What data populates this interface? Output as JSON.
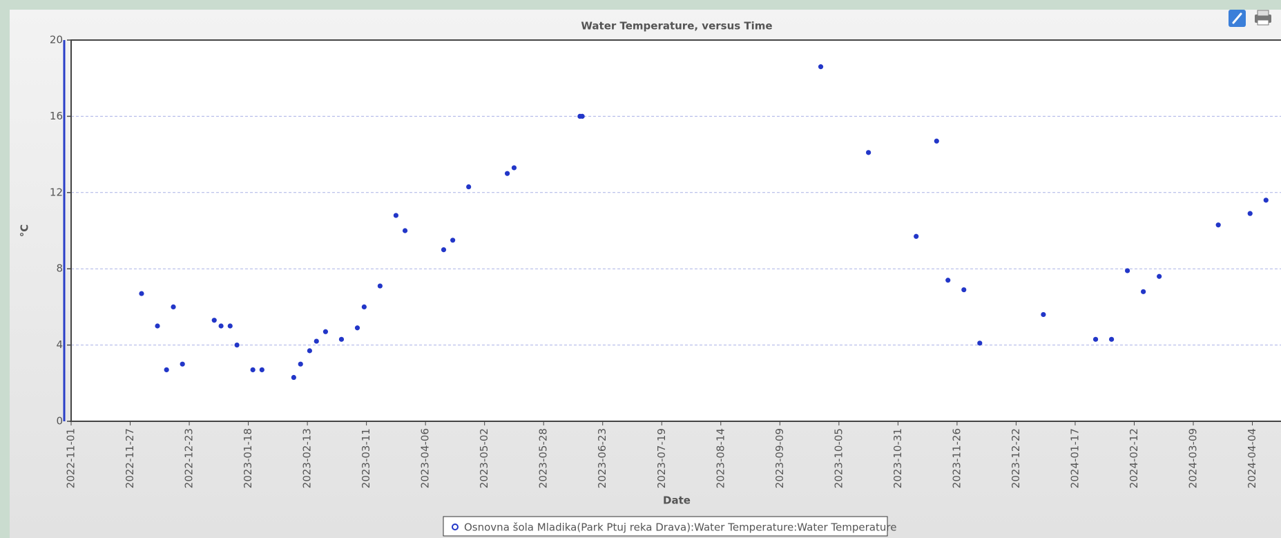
{
  "chart_data": {
    "type": "scatter",
    "title": "Water Temperature, versus Time",
    "x_label": "Date",
    "y_label": "°C",
    "x": [
      "2022-12-02",
      "2022-12-09",
      "2022-12-13",
      "2022-12-16",
      "2022-12-20",
      "2023-01-03",
      "2023-01-06",
      "2023-01-10",
      "2023-01-13",
      "2023-01-20",
      "2023-01-24",
      "2023-02-07",
      "2023-02-10",
      "2023-02-14",
      "2023-02-17",
      "2023-02-21",
      "2023-02-28",
      "2023-03-07",
      "2023-03-10",
      "2023-03-17",
      "2023-03-24",
      "2023-03-28",
      "2023-04-14",
      "2023-04-18",
      "2023-04-25",
      "2023-05-12",
      "2023-05-15",
      "2023-06-13",
      "2023-06-14",
      "2023-09-27",
      "2023-10-18",
      "2023-11-08",
      "2023-11-17",
      "2023-11-22",
      "2023-11-29",
      "2023-12-06",
      "2024-01-03",
      "2024-01-26",
      "2024-02-02",
      "2024-02-09",
      "2024-02-16",
      "2024-02-23",
      "2024-03-20",
      "2024-04-03",
      "2024-04-10"
    ],
    "series": [
      {
        "name": "Osnovna šola Mladika(Park Ptuj reka Drava):Water Temperature:Water Temperature",
        "color": "#2236c8",
        "values": [
          6.7,
          5.0,
          2.7,
          6.0,
          3.0,
          5.3,
          5.0,
          5.0,
          4.0,
          2.7,
          2.7,
          2.3,
          3.0,
          3.7,
          4.2,
          4.7,
          4.3,
          4.9,
          6.0,
          7.1,
          10.8,
          10.0,
          9.0,
          9.5,
          12.3,
          13.0,
          13.3,
          16.0,
          16.0,
          18.6,
          14.1,
          9.7,
          14.7,
          7.4,
          6.9,
          4.1,
          5.6,
          4.3,
          4.3,
          7.9,
          6.8,
          7.6,
          10.3,
          10.9,
          11.6
        ]
      }
    ],
    "xlim": [
      "2022-11-01",
      "2024-04-16"
    ],
    "xticks": [
      "2022-11-01",
      "2022-11-27",
      "2022-12-23",
      "2023-01-18",
      "2023-02-13",
      "2023-03-11",
      "2023-04-06",
      "2023-05-02",
      "2023-05-28",
      "2023-06-23",
      "2023-07-19",
      "2023-08-14",
      "2023-09-09",
      "2023-10-05",
      "2023-10-31",
      "2023-11-26",
      "2023-12-22",
      "2024-01-17",
      "2024-02-12",
      "2024-03-09",
      "2024-04-04"
    ],
    "ylim": [
      0,
      20
    ],
    "yticks": [
      0,
      4,
      8,
      12,
      16,
      20
    ],
    "grid": true
  }
}
